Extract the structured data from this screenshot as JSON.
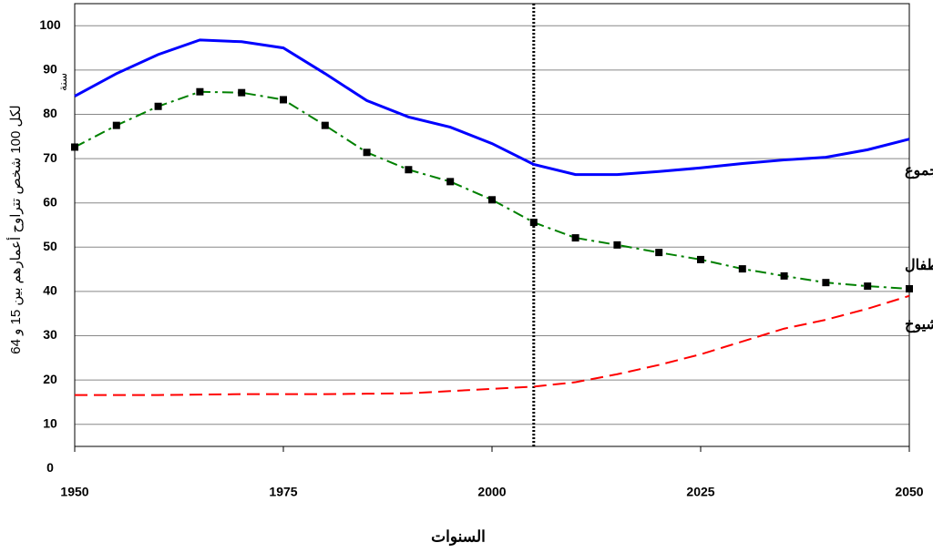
{
  "chart_data": {
    "type": "line",
    "xlabel": "السنوات",
    "ylabel": [
      "لكل 100 شخص تتراوح أعمارهم بين 15 و 64",
      "سنة"
    ],
    "x": [
      1950,
      1955,
      1960,
      1965,
      1970,
      1975,
      1980,
      1985,
      1990,
      1995,
      2000,
      2005,
      2010,
      2015,
      2020,
      2025,
      2030,
      2035,
      2040,
      2045,
      2050
    ],
    "series": [
      {
        "name": "المجموع",
        "color": "#0000ff",
        "dash": "solid",
        "markers": false,
        "values": [
          84.1,
          89.2,
          93.5,
          96.8,
          96.4,
          95.0,
          89.2,
          83.1,
          79.4,
          77.1,
          73.4,
          68.7,
          66.4,
          66.4,
          67.1,
          67.9,
          68.9,
          69.7,
          70.3,
          72.0,
          74.4
        ]
      },
      {
        "name": "الأطفال",
        "color": "#008000",
        "dash": "dashdot",
        "markers": true,
        "values": [
          72.6,
          77.5,
          81.8,
          85.1,
          84.9,
          83.3,
          77.5,
          71.4,
          67.5,
          64.8,
          60.7,
          55.6,
          52.1,
          50.5,
          48.8,
          47.2,
          45.1,
          43.5,
          42.0,
          41.2,
          40.6
        ]
      },
      {
        "name": "الشيوخ",
        "color": "#ff0000",
        "dash": "dashed",
        "markers": false,
        "values": [
          16.6,
          16.6,
          16.6,
          16.7,
          16.8,
          16.8,
          16.8,
          16.9,
          17.0,
          17.5,
          18.0,
          18.5,
          19.5,
          21.3,
          23.4,
          25.8,
          28.7,
          31.6,
          33.6,
          36.1,
          39.0
        ]
      }
    ],
    "xlim": [
      1950,
      2050
    ],
    "xticks": [
      1950,
      1975,
      2000,
      2025,
      2050
    ],
    "ylim": [
      5,
      105
    ],
    "yticks": [
      0,
      10,
      20,
      30,
      40,
      50,
      60,
      70,
      80,
      90,
      100
    ],
    "grid": true,
    "reference_line_x": 2005
  }
}
